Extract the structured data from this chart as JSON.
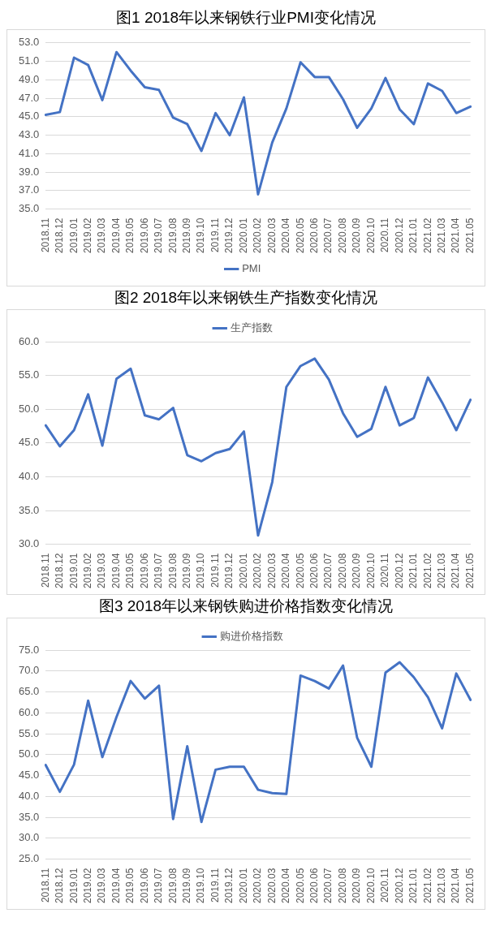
{
  "chart_data": [
    {
      "type": "line",
      "title": "图1  2018年以来钢铁行业PMI变化情况",
      "categories": [
        "2018.11",
        "2018.12",
        "2019.01",
        "2019.02",
        "2019.03",
        "2019.04",
        "2019.05",
        "2019.06",
        "2019.07",
        "2019.08",
        "2019.09",
        "2019.10",
        "2019.11",
        "2019.12",
        "2020.01",
        "2020.02",
        "2020.03",
        "2020.04",
        "2020.05",
        "2020.06",
        "2020.07",
        "2020.08",
        "2020.09",
        "2020.10",
        "2020.11",
        "2020.12",
        "2021.01",
        "2021.02",
        "2021.03",
        "2021.04",
        "2021.05"
      ],
      "series": [
        {
          "name": "PMI",
          "color": "#4472c4",
          "values": [
            45.2,
            45.5,
            51.4,
            50.6,
            46.8,
            52.0,
            50.0,
            48.2,
            47.9,
            44.9,
            44.2,
            41.3,
            45.4,
            43.0,
            47.1,
            36.6,
            42.2,
            45.9,
            50.9,
            49.3,
            49.3,
            46.9,
            43.8,
            45.9,
            49.2,
            45.8,
            44.2,
            48.6,
            47.8,
            45.4,
            46.1
          ]
        }
      ],
      "ylim": [
        35,
        53
      ],
      "yticks": [
        {
          "value": 35,
          "label": "35.0"
        },
        {
          "value": 37,
          "label": "37.0"
        },
        {
          "value": 39,
          "label": "39.0"
        },
        {
          "value": 41,
          "label": "41.0"
        },
        {
          "value": 43,
          "label": "43.0"
        },
        {
          "value": 45,
          "label": "45.0"
        },
        {
          "value": 47,
          "label": "47.0"
        },
        {
          "value": 49,
          "label": "49.0"
        },
        {
          "value": 51,
          "label": "51.0"
        },
        {
          "value": 53,
          "label": "53.0"
        }
      ],
      "grid": "y",
      "legend": "bottom",
      "marker": "none",
      "line_style": "solid"
    },
    {
      "type": "line",
      "title": "图2  2018年以来钢铁生产指数变化情况",
      "categories": [
        "2018.11",
        "2018.12",
        "2019.01",
        "2019.02",
        "2019.03",
        "2019.04",
        "2019.05",
        "2019.06",
        "2019.07",
        "2019.08",
        "2019.09",
        "2019.10",
        "2019.11",
        "2019.12",
        "2020.01",
        "2020.02",
        "2020.03",
        "2020.04",
        "2020.05",
        "2020.06",
        "2020.07",
        "2020.08",
        "2020.09",
        "2020.10",
        "2020.11",
        "2020.12",
        "2021.01",
        "2021.02",
        "2021.03",
        "2021.04",
        "2021.05"
      ],
      "series": [
        {
          "name": "生产指数",
          "color": "#4472c4",
          "values": [
            47.6,
            44.5,
            46.9,
            52.2,
            44.6,
            54.5,
            56.0,
            49.1,
            48.5,
            50.2,
            43.2,
            42.3,
            43.5,
            44.1,
            46.7,
            31.3,
            39.2,
            53.3,
            56.4,
            57.5,
            54.4,
            49.4,
            45.9,
            47.1,
            53.3,
            47.6,
            48.7,
            54.7,
            51.0,
            46.9,
            51.4
          ]
        }
      ],
      "ylim": [
        30,
        60
      ],
      "yticks": [
        {
          "value": 30,
          "label": "30.0"
        },
        {
          "value": 35,
          "label": "35.0"
        },
        {
          "value": 40,
          "label": "40.0"
        },
        {
          "value": 45,
          "label": "45.0"
        },
        {
          "value": 50,
          "label": "50.0"
        },
        {
          "value": 55,
          "label": "55.0"
        },
        {
          "value": 60,
          "label": "60.0"
        }
      ],
      "grid": "y",
      "legend": "top",
      "marker": "none",
      "line_style": "solid"
    },
    {
      "type": "line",
      "title": "图3  2018年以来钢铁购进价格指数变化情况",
      "categories": [
        "2018.11",
        "2018.12",
        "2019.01",
        "2019.02",
        "2019.03",
        "2019.04",
        "2019.05",
        "2019.06",
        "2019.07",
        "2019.08",
        "2019.09",
        "2019.10",
        "2019.11",
        "2019.12",
        "2020.01",
        "2020.02",
        "2020.03",
        "2020.04",
        "2020.05",
        "2020.06",
        "2020.07",
        "2020.08",
        "2020.09",
        "2020.10",
        "2020.11",
        "2020.12",
        "2021.01",
        "2021.02",
        "2021.03",
        "2021.04",
        "2021.05"
      ],
      "series": [
        {
          "name": "购进价格指数",
          "color": "#4472c4",
          "values": [
            47.5,
            41.1,
            47.6,
            62.9,
            49.4,
            59.0,
            67.6,
            63.4,
            66.5,
            34.6,
            52.0,
            33.9,
            46.4,
            47.1,
            47.1,
            41.6,
            40.8,
            40.6,
            68.9,
            67.6,
            65.8,
            71.3,
            54.0,
            47.1,
            69.6,
            72.1,
            68.5,
            63.7,
            56.3,
            69.4,
            63.1
          ]
        }
      ],
      "ylim": [
        25,
        75
      ],
      "yticks": [
        {
          "value": 25,
          "label": "25.0"
        },
        {
          "value": 30,
          "label": "30.0"
        },
        {
          "value": 35,
          "label": "35.0"
        },
        {
          "value": 40,
          "label": "40.0"
        },
        {
          "value": 45,
          "label": "45.0"
        },
        {
          "value": 50,
          "label": "50.0"
        },
        {
          "value": 55,
          "label": "55.0"
        },
        {
          "value": 60,
          "label": "60.0"
        },
        {
          "value": 65,
          "label": "65.0"
        },
        {
          "value": 70,
          "label": "70.0"
        },
        {
          "value": 75,
          "label": "75.0"
        }
      ],
      "grid": "y",
      "legend": "top",
      "marker": "none",
      "line_style": "solid"
    }
  ]
}
